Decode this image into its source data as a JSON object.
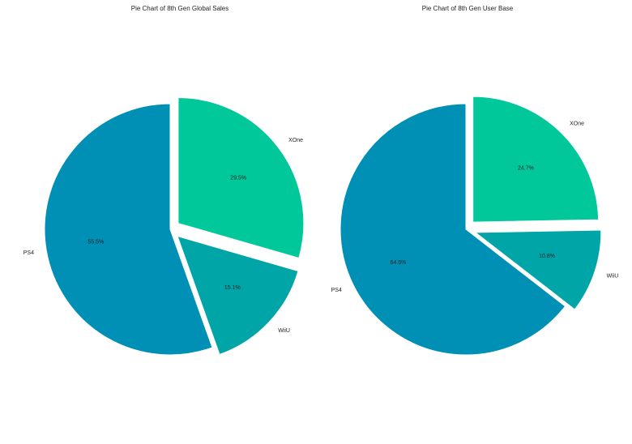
{
  "chart_data": [
    {
      "type": "pie",
      "title": "Pie Chart of 8th Gen Global Sales",
      "categories": [
        "PS4",
        "WiiU",
        "XOne"
      ],
      "values": [
        55.5,
        15.1,
        29.5
      ],
      "value_labels": [
        "55.5%",
        "15.1%",
        "29.5%"
      ],
      "colors": [
        "#008fb5",
        "#00a5a8",
        "#00c89b"
      ]
    },
    {
      "type": "pie",
      "title": "Pie Chart of 8th Gen User Base",
      "categories": [
        "PS4",
        "WiiU",
        "XOne"
      ],
      "values": [
        64.5,
        10.8,
        24.7
      ],
      "value_labels": [
        "64.5%",
        "10.8%",
        "24.7%"
      ],
      "colors": [
        "#008fb5",
        "#00a5a8",
        "#00c89b"
      ]
    }
  ]
}
